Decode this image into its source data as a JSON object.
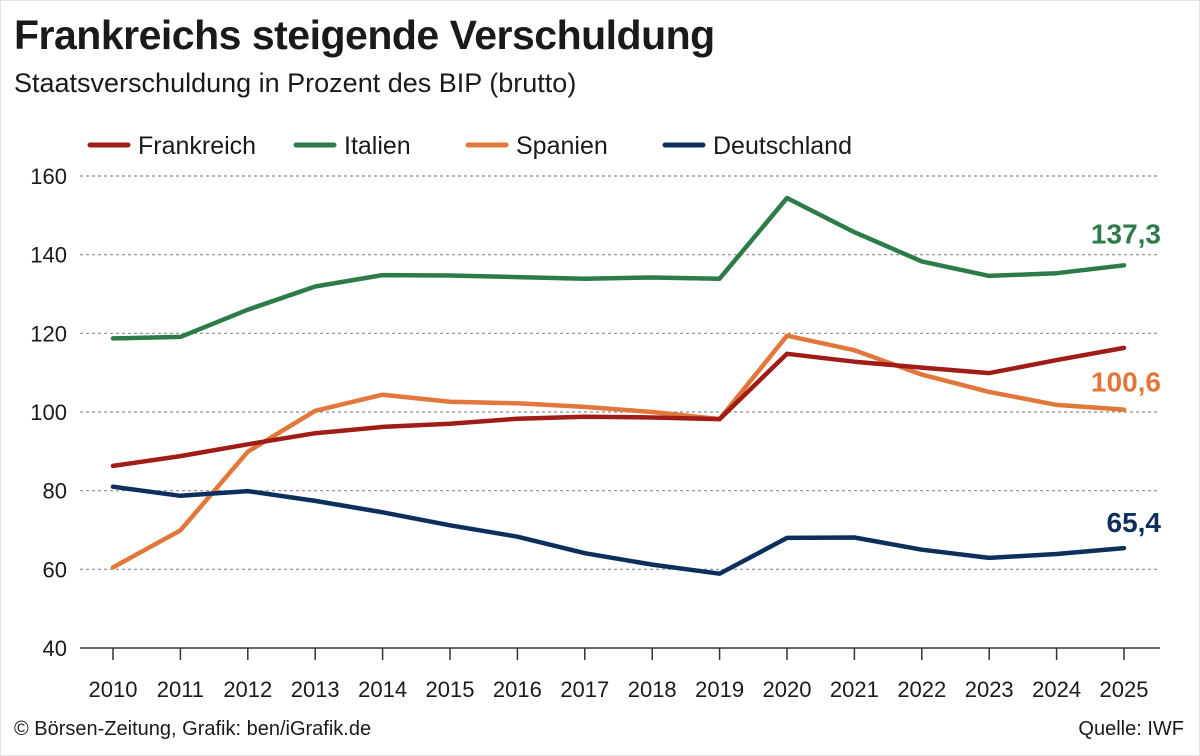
{
  "title": "Frankreichs steigende Verschuldung",
  "subtitle": "Staatsverschuldung in Prozent des BIP (brutto)",
  "footer": {
    "left": "© Börsen-Zeitung, Grafik: ben/iGrafik.de",
    "right": "Quelle: IWF"
  },
  "chart_data": {
    "type": "line",
    "title": "Frankreichs steigende Verschuldung",
    "subtitle": "Staatsverschuldung in Prozent des BIP (brutto)",
    "x": [
      2010,
      2011,
      2012,
      2013,
      2014,
      2015,
      2016,
      2017,
      2018,
      2019,
      2020,
      2021,
      2022,
      2023,
      2024,
      2025
    ],
    "ylim": [
      40,
      160
    ],
    "yticks": [
      40,
      60,
      80,
      100,
      120,
      140,
      160
    ],
    "grid": "horizontal-dashed",
    "legend": "top",
    "series": [
      {
        "name": "Frankreich",
        "color": "#a01c16",
        "values": [
          86.3,
          88.8,
          91.8,
          94.6,
          96.2,
          97.0,
          98.3,
          98.8,
          98.6,
          98.2,
          114.8,
          112.8,
          111.3,
          109.9,
          113.2,
          116.3
        ]
      },
      {
        "name": "Italien",
        "color": "#2e7b4a",
        "end_label": "137,3",
        "values": [
          118.7,
          119.1,
          126.0,
          131.9,
          134.8,
          134.7,
          134.3,
          133.9,
          134.2,
          133.9,
          154.4,
          145.7,
          138.3,
          134.6,
          135.3,
          137.3
        ]
      },
      {
        "name": "Spanien",
        "color": "#e2773b",
        "end_label": "100,6",
        "values": [
          60.5,
          69.9,
          89.9,
          100.3,
          104.4,
          102.6,
          102.2,
          101.3,
          100.0,
          98.2,
          119.4,
          115.7,
          109.5,
          105.1,
          101.8,
          100.6
        ]
      },
      {
        "name": "Deutschland",
        "color": "#0d2f5c",
        "end_label": "65,4",
        "values": [
          81.0,
          78.7,
          79.9,
          77.4,
          74.5,
          71.2,
          68.3,
          64.1,
          61.2,
          58.9,
          68.0,
          68.1,
          65.0,
          62.9,
          63.9,
          65.4
        ]
      }
    ]
  }
}
